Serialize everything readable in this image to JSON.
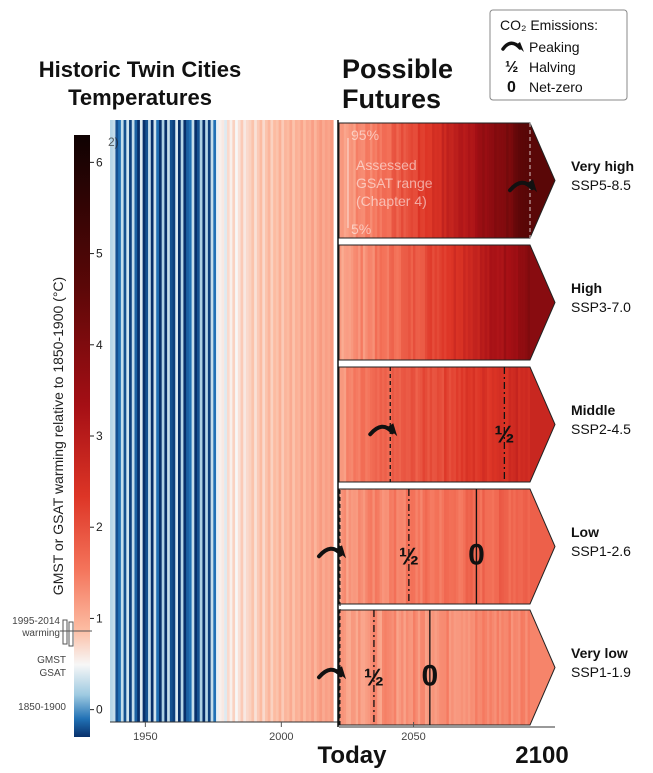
{
  "chart_data": {
    "type": "heatmap",
    "title_history": "Historic Twin Cities Temperatures",
    "title_futures": "Possible Futures",
    "ylabel": "GMST or GSAT warming relative to 1850-1900 (°C)",
    "colorbar": {
      "min": -0.3,
      "max": 6.3,
      "ticks": [
        "0",
        "1",
        "2",
        "3",
        "4",
        "5",
        "6"
      ]
    },
    "history": {
      "start_year": 1937,
      "end_year": 2018,
      "values": [
        0.25,
        0.3,
        -0.2,
        -0.1,
        0.3,
        -0.2,
        0.35,
        -0.25,
        0.3,
        -0.15,
        -0.3,
        0.4,
        -0.35,
        -0.2,
        0.3,
        -0.4,
        0.35,
        -0.1,
        -0.3,
        0.2,
        -0.35,
        0.3,
        -0.2,
        -0.25,
        0.4,
        -0.35,
        0.25,
        -0.3,
        -0.15,
        -0.1,
        0.3,
        -0.35,
        -0.2,
        0.2,
        -0.3,
        0.25,
        -0.25,
        0.3,
        -0.1,
        0.45,
        0.55,
        0.6,
        0.4,
        0.7,
        0.55,
        0.75,
        0.5,
        0.65,
        0.8,
        0.6,
        0.7,
        0.75,
        0.85,
        0.65,
        0.8,
        0.9,
        0.7,
        0.85,
        0.95,
        0.75,
        0.9,
        0.85,
        1.0,
        0.8,
        0.95,
        0.9,
        1.05,
        0.85,
        1.0,
        0.95,
        1.1,
        0.9,
        1.05,
        1.0,
        1.15,
        0.95,
        1.1,
        1.2,
        1.05,
        1.15,
        1.1,
        1.2
      ]
    },
    "x_ticks": [
      "1950",
      "2000",
      "2050"
    ],
    "x_bottom_labels": {
      "today": "Today",
      "end": "2100"
    },
    "futures_x_range": [
      2018,
      2100
    ],
    "scenarios": [
      {
        "name": "Very high",
        "code": "SSP5-8.5",
        "start": 1.2,
        "end": 4.6,
        "markers": [
          {
            "type": "peaking",
            "year": 2100
          }
        ]
      },
      {
        "name": "High",
        "code": "SSP3-7.0",
        "start": 1.2,
        "end": 3.8,
        "markers": []
      },
      {
        "name": "Middle",
        "code": "SSP2-4.5",
        "start": 1.2,
        "end": 2.7,
        "markers": [
          {
            "type": "peaking",
            "year": 2040
          },
          {
            "type": "halving",
            "year": 2089
          }
        ]
      },
      {
        "name": "Low",
        "code": "SSP1-2.6",
        "start": 1.2,
        "end": 1.8,
        "markers": [
          {
            "type": "peaking",
            "year": 2018
          },
          {
            "type": "halving",
            "year": 2048
          },
          {
            "type": "net-zero",
            "year": 2077
          }
        ]
      },
      {
        "name": "Very low",
        "code": "SSP1-1.9",
        "start": 1.2,
        "end": 1.4,
        "markers": [
          {
            "type": "peaking",
            "year": 2018
          },
          {
            "type": "halving",
            "year": 2033
          },
          {
            "type": "net-zero",
            "year": 2057
          }
        ]
      }
    ],
    "range_annotation": {
      "top": "95%",
      "line1": "Assessed",
      "line2": "GSAT range",
      "line3": "(Chapter 4)",
      "bottom": "5%"
    },
    "warming_box": {
      "label1": "1995-2014",
      "label2": "warming",
      "label3": "GMST",
      "label4": "GSAT",
      "label5": "1850-1900",
      "value": 0.85
    },
    "legend": {
      "title": "CO₂ Emissions:",
      "items": [
        {
          "symbol": "peaking-icon",
          "label": "Peaking"
        },
        {
          "symbol": "½",
          "label": "Halving"
        },
        {
          "symbol": "0",
          "label": "Net-zero"
        }
      ]
    },
    "corner_label": "2)"
  }
}
